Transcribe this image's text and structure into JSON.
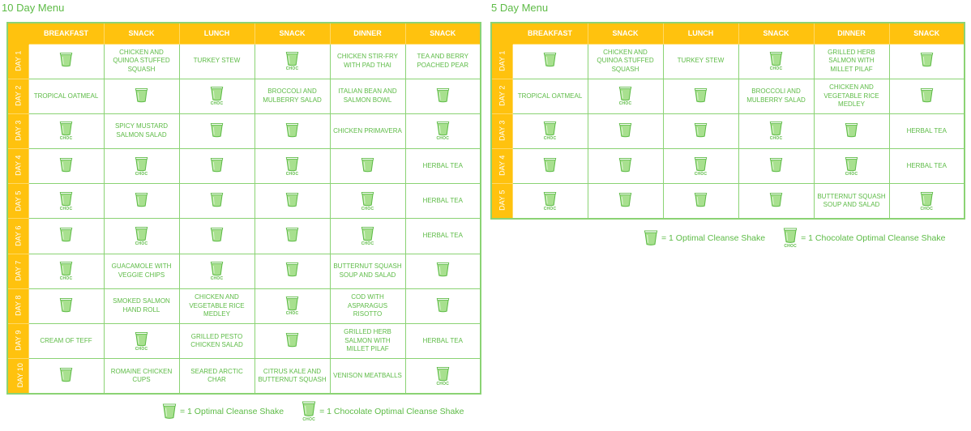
{
  "colors": {
    "accent": "#ffc20e",
    "green": "#5dbb46",
    "cup": "#a8e08f",
    "border": "#8bd374"
  },
  "icons": {
    "shake": "cup-icon"
  },
  "menus": [
    {
      "title": "10 Day Menu",
      "columns": [
        "BREAKFAST",
        "SNACK",
        "LUNCH",
        "SNACK",
        "DINNER",
        "SNACK"
      ],
      "days": [
        {
          "label": "DAY 1",
          "cells": [
            {
              "shake": true
            },
            {
              "text": "CHICKEN AND QUINOA STUFFED SQUASH"
            },
            {
              "text": "TURKEY STEW"
            },
            {
              "shake": true,
              "choc": "CHOC"
            },
            {
              "text": "CHICKEN STIR-FRY WITH PAD THAI"
            },
            {
              "text": "TEA AND BERRY POACHED PEAR"
            }
          ]
        },
        {
          "label": "DAY 2",
          "cells": [
            {
              "text": "TROPICAL OATMEAL"
            },
            {
              "shake": true
            },
            {
              "shake": true,
              "choc": "CHOC"
            },
            {
              "text": "BROCCOLI AND MULBERRY SALAD"
            },
            {
              "text": "ITALIAN BEAN AND SALMON BOWL"
            },
            {
              "shake": true
            }
          ]
        },
        {
          "label": "DAY 3",
          "cells": [
            {
              "shake": true,
              "choc": "CHOC"
            },
            {
              "text": "SPICY MUSTARD SALMON SALAD"
            },
            {
              "shake": true
            },
            {
              "shake": true
            },
            {
              "text": "CHICKEN PRIMAVERA"
            },
            {
              "shake": true,
              "choc": "CHOC"
            }
          ]
        },
        {
          "label": "DAY 4",
          "cells": [
            {
              "shake": true
            },
            {
              "shake": true,
              "choc": "CHOC"
            },
            {
              "shake": true
            },
            {
              "shake": true,
              "choc": "CHOC"
            },
            {
              "shake": true
            },
            {
              "text": "HERBAL TEA"
            }
          ]
        },
        {
          "label": "DAY 5",
          "cells": [
            {
              "shake": true,
              "choc": "CHOC"
            },
            {
              "shake": true
            },
            {
              "shake": true
            },
            {
              "shake": true
            },
            {
              "shake": true,
              "choc": "CHOC"
            },
            {
              "text": "HERBAL TEA"
            }
          ]
        },
        {
          "label": "DAY 6",
          "cells": [
            {
              "shake": true
            },
            {
              "shake": true,
              "choc": "CHOC"
            },
            {
              "shake": true
            },
            {
              "shake": true
            },
            {
              "shake": true,
              "choc": "CHOC"
            },
            {
              "text": "HERBAL TEA"
            }
          ]
        },
        {
          "label": "DAY 7",
          "cells": [
            {
              "shake": true,
              "choc": "CHOC"
            },
            {
              "text": "GUACAMOLE WITH VEGGIE CHIPS"
            },
            {
              "shake": true,
              "choc": "CHOC"
            },
            {
              "shake": true
            },
            {
              "text": "BUTTERNUT SQUASH SOUP AND SALAD"
            },
            {
              "shake": true
            }
          ]
        },
        {
          "label": "DAY 8",
          "cells": [
            {
              "shake": true
            },
            {
              "text": "SMOKED SALMON HAND ROLL"
            },
            {
              "text": "CHICKEN AND VEGETABLE RICE MEDLEY"
            },
            {
              "shake": true,
              "choc": "CHOC"
            },
            {
              "text": "COD WITH ASPARAGUS RISOTTO"
            },
            {
              "shake": true
            }
          ]
        },
        {
          "label": "DAY 9",
          "cells": [
            {
              "text": "CREAM OF TEFF"
            },
            {
              "shake": true,
              "choc": "CHOC"
            },
            {
              "text": "GRILLED PESTO CHICKEN SALAD"
            },
            {
              "shake": true
            },
            {
              "text": "GRILLED HERB SALMON WITH MILLET PILAF"
            },
            {
              "text": "HERBAL TEA"
            }
          ]
        },
        {
          "label": "DAY 10",
          "cells": [
            {
              "shake": true
            },
            {
              "text": "ROMAINE CHICKEN CUPS"
            },
            {
              "text": "SEARED ARCTIC CHAR"
            },
            {
              "text": "CITRUS KALE AND BUTTERNUT SQUASH"
            },
            {
              "text": "VENISON MEATBALLS"
            },
            {
              "shake": true,
              "choc": "CHOC"
            }
          ]
        }
      ],
      "legend": {
        "shake_label": "= 1 Optimal Cleanse Shake",
        "choc_label": "= 1 Chocolate Optimal Cleanse Shake",
        "choc_tag": "CHOC"
      }
    },
    {
      "title": "5 Day Menu",
      "columns": [
        "BREAKFAST",
        "SNACK",
        "LUNCH",
        "SNACK",
        "DINNER",
        "SNACK"
      ],
      "days": [
        {
          "label": "DAY 1",
          "cells": [
            {
              "shake": true
            },
            {
              "text": "CHICKEN AND QUINOA STUFFED SQUASH"
            },
            {
              "text": "TURKEY STEW"
            },
            {
              "shake": true,
              "choc": "CHOC"
            },
            {
              "text": "GRILLED HERB SALMON WITH MILLET PILAF"
            },
            {
              "shake": true
            }
          ]
        },
        {
          "label": "DAY 2",
          "cells": [
            {
              "text": "TROPICAL OATMEAL"
            },
            {
              "shake": true,
              "choc": "CHOC"
            },
            {
              "shake": true
            },
            {
              "text": "BROCCOLI AND MULBERRY SALAD"
            },
            {
              "text": "CHICKEN AND VEGETABLE RICE MEDLEY"
            },
            {
              "shake": true
            }
          ]
        },
        {
          "label": "DAY 3",
          "cells": [
            {
              "shake": true,
              "choc": "CHOC"
            },
            {
              "shake": true
            },
            {
              "shake": true
            },
            {
              "shake": true,
              "choc": "CHOC"
            },
            {
              "shake": true
            },
            {
              "text": "HERBAL TEA"
            }
          ]
        },
        {
          "label": "DAY 4",
          "cells": [
            {
              "shake": true
            },
            {
              "shake": true
            },
            {
              "shake": true,
              "choc": "CHOC"
            },
            {
              "shake": true
            },
            {
              "shake": true,
              "choc": "CHOC"
            },
            {
              "text": "HERBAL TEA"
            }
          ]
        },
        {
          "label": "DAY 5",
          "cells": [
            {
              "shake": true,
              "choc": "CHOC"
            },
            {
              "shake": true
            },
            {
              "shake": true
            },
            {
              "shake": true
            },
            {
              "text": "BUTTERNUT SQUASH SOUP AND SALAD"
            },
            {
              "shake": true,
              "choc": "CHOC"
            }
          ]
        }
      ],
      "legend": {
        "shake_label": "= 1 Optimal Cleanse Shake",
        "choc_label": "= 1 Chocolate Optimal Cleanse Shake",
        "choc_tag": "CHOC"
      }
    }
  ]
}
